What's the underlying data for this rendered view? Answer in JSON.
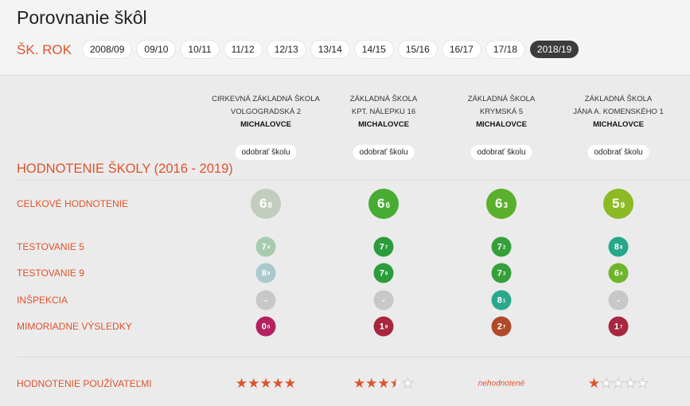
{
  "page": {
    "title": "Porovnanie škôl"
  },
  "year_filter": {
    "label": "ŠK. ROK",
    "years": [
      "2008/09",
      "09/10",
      "10/11",
      "11/12",
      "12/13",
      "13/14",
      "14/15",
      "15/16",
      "16/17",
      "17/18",
      "2018/19"
    ],
    "active": "2018/19"
  },
  "schools": [
    {
      "line1": "CIRKEVNÁ ZÁKLADNÁ ŠKOLA",
      "line2": "VOLGOGRADSKÁ 2",
      "town": "MICHALOVCE",
      "remove": "odobrať školu"
    },
    {
      "line1": "ZÁKLADNÁ ŠKOLA",
      "line2": "KPT. NÁLEPKU 16",
      "town": "MICHALOVCE",
      "remove": "odobrať školu"
    },
    {
      "line1": "ZÁKLADNÁ ŠKOLA",
      "line2": "KRYMSKÁ 5",
      "town": "MICHALOVCE",
      "remove": "odobrať školu"
    },
    {
      "line1": "ZÁKLADNÁ ŠKOLA",
      "line2": "JÁNA A. KOMENSKÉHO 1",
      "town": "MICHALOVCE",
      "remove": "odobrať školu"
    }
  ],
  "section_title": "HODNOTENIE ŠKOLY (2016 - 2019)",
  "rows": [
    {
      "label": "CELKOVÉ HODNOTENIE",
      "size": "big",
      "values": [
        {
          "int": "6",
          "dec": "8",
          "color": "#c2cdbd"
        },
        {
          "int": "6",
          "dec": "6",
          "color": "#47ac32"
        },
        {
          "int": "6",
          "dec": "3",
          "color": "#5aaf2c"
        },
        {
          "int": "5",
          "dec": "9",
          "color": "#8cba24"
        }
      ]
    },
    {
      "label": "TESTOVANIE 5",
      "size": "small",
      "values": [
        {
          "int": "7",
          "dec": "4",
          "color": "#a8cbb0"
        },
        {
          "int": "7",
          "dec": "7",
          "color": "#2b9c3c"
        },
        {
          "int": "7",
          "dec": "2",
          "color": "#35a03a"
        },
        {
          "int": "8",
          "dec": "8",
          "color": "#25a88a"
        }
      ]
    },
    {
      "label": "TESTOVANIE 9",
      "size": "small",
      "values": [
        {
          "int": "8",
          "dec": "9",
          "color": "#a9c9cb"
        },
        {
          "int": "7",
          "dec": "9",
          "color": "#2b9c3c"
        },
        {
          "int": "7",
          "dec": "3",
          "color": "#35a03a"
        },
        {
          "int": "6",
          "dec": "4",
          "color": "#6eb52c"
        }
      ]
    },
    {
      "label": "INŠPEKCIA",
      "size": "small",
      "values": [
        {
          "int": "-",
          "dec": "",
          "color": "#c8c8c8"
        },
        {
          "int": "-",
          "dec": "",
          "color": "#c8c8c8"
        },
        {
          "int": "8",
          "dec": "1",
          "color": "#2aa88c"
        },
        {
          "int": "-",
          "dec": "",
          "color": "#c8c8c8"
        }
      ]
    },
    {
      "label": "MIMORIADNE VÝSLEDKY",
      "size": "small",
      "values": [
        {
          "int": "0",
          "dec": "0",
          "color": "#b3225f"
        },
        {
          "int": "1",
          "dec": "9",
          "color": "#a8263e"
        },
        {
          "int": "2",
          "dec": "7",
          "color": "#b04a2a"
        },
        {
          "int": "1",
          "dec": "7",
          "color": "#a8263e"
        }
      ]
    }
  ],
  "user_rating": {
    "label": "HODNOTENIE POUŽÍVATEĽMI",
    "stars": [
      5,
      3.5,
      null,
      1
    ],
    "not_rated_text": "nehodnotené"
  }
}
